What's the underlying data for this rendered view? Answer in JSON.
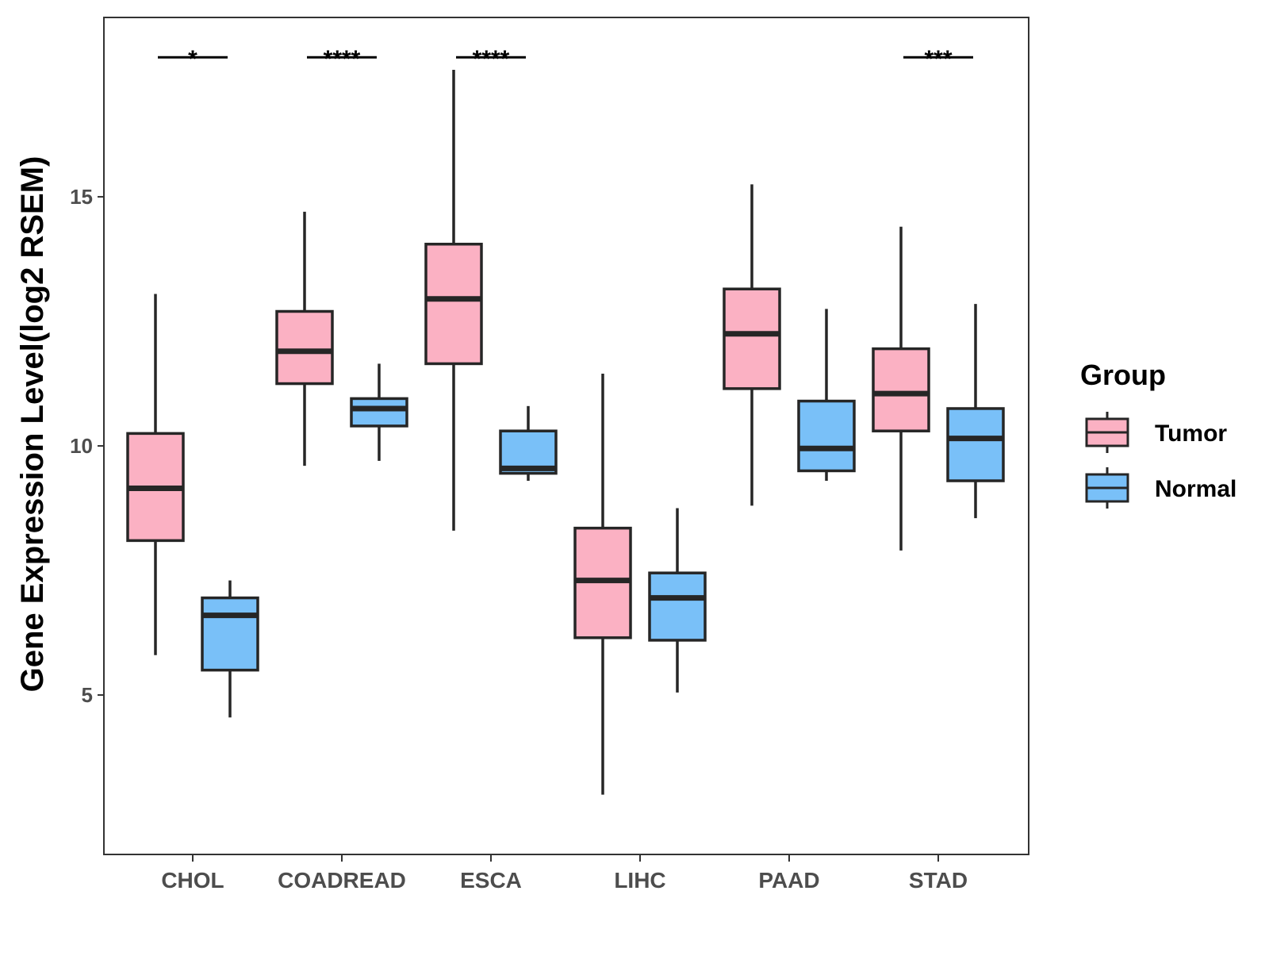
{
  "chart_data": {
    "type": "boxplot",
    "title": "",
    "xlabel": "",
    "ylabel": "Gene Expression Level(log2 RSEM)",
    "ylim": [
      1.8,
      18.6
    ],
    "yticks": [
      5,
      10,
      15
    ],
    "categories": [
      "CHOL",
      "COADREAD",
      "ESCA",
      "LIHC",
      "PAAD",
      "STAD"
    ],
    "legend": {
      "title": "Group",
      "position": "right",
      "entries": [
        {
          "label": "Tumor",
          "color": "#FBB1C3"
        },
        {
          "label": "Normal",
          "color": "#79C0F8"
        }
      ]
    },
    "series": [
      {
        "name": "Tumor",
        "color": "#FBB1C3",
        "boxes": [
          {
            "category": "CHOL",
            "whisker_low": 5.8,
            "q1": 8.1,
            "median": 9.15,
            "q3": 10.25,
            "whisker_high": 13.05
          },
          {
            "category": "COADREAD",
            "whisker_low": 9.6,
            "q1": 11.25,
            "median": 11.9,
            "q3": 12.7,
            "whisker_high": 14.7
          },
          {
            "category": "ESCA",
            "whisker_low": 8.3,
            "q1": 11.65,
            "median": 12.95,
            "q3": 14.05,
            "whisker_high": 17.55
          },
          {
            "category": "LIHC",
            "whisker_low": 3.0,
            "q1": 6.15,
            "median": 7.3,
            "q3": 8.35,
            "whisker_high": 11.45
          },
          {
            "category": "PAAD",
            "whisker_low": 8.8,
            "q1": 11.15,
            "median": 12.25,
            "q3": 13.15,
            "whisker_high": 15.25
          },
          {
            "category": "STAD",
            "whisker_low": 7.9,
            "q1": 10.3,
            "median": 11.05,
            "q3": 11.95,
            "whisker_high": 14.4
          }
        ]
      },
      {
        "name": "Normal",
        "color": "#79C0F8",
        "boxes": [
          {
            "category": "CHOL",
            "whisker_low": 4.55,
            "q1": 5.5,
            "median": 6.6,
            "q3": 6.95,
            "whisker_high": 7.3
          },
          {
            "category": "COADREAD",
            "whisker_low": 9.7,
            "q1": 10.4,
            "median": 10.75,
            "q3": 10.95,
            "whisker_high": 11.65
          },
          {
            "category": "ESCA",
            "whisker_low": 9.3,
            "q1": 9.45,
            "median": 9.55,
            "q3": 10.3,
            "whisker_high": 10.8
          },
          {
            "category": "LIHC",
            "whisker_low": 5.05,
            "q1": 6.1,
            "median": 6.95,
            "q3": 7.45,
            "whisker_high": 8.75
          },
          {
            "category": "PAAD",
            "whisker_low": 9.3,
            "q1": 9.5,
            "median": 9.95,
            "q3": 10.9,
            "whisker_high": 12.75
          },
          {
            "category": "STAD",
            "whisker_low": 8.55,
            "q1": 9.3,
            "median": 10.15,
            "q3": 10.75,
            "whisker_high": 12.85
          }
        ]
      }
    ],
    "annotations": [
      {
        "category": "CHOL",
        "label": "*",
        "y": 17.8
      },
      {
        "category": "COADREAD",
        "label": "****",
        "y": 17.8
      },
      {
        "category": "ESCA",
        "label": "****",
        "y": 17.8
      },
      {
        "category": "STAD",
        "label": "***",
        "y": 17.8
      }
    ]
  }
}
